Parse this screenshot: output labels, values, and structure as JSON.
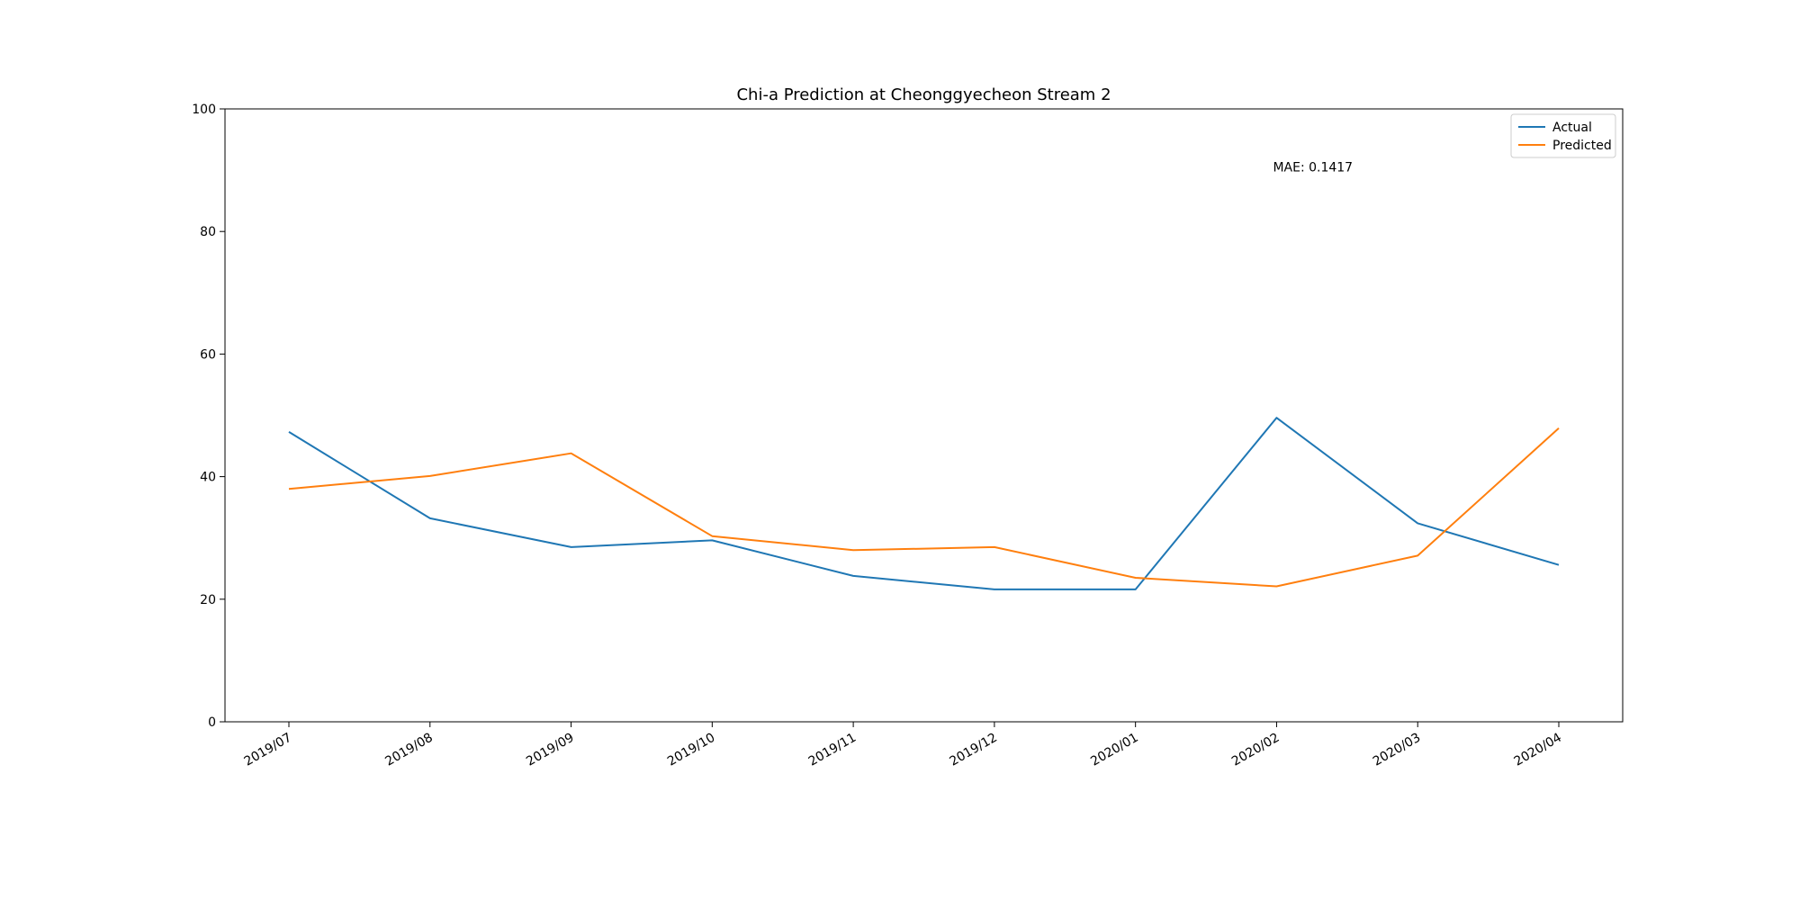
{
  "chart_data": {
    "type": "line",
    "title": "Chi-a Prediction at Cheonggyecheon Stream 2",
    "xlabel": "",
    "ylabel": "",
    "categories": [
      "2019/07",
      "2019/08",
      "2019/09",
      "2019/10",
      "2019/11",
      "2019/12",
      "2020/01",
      "2020/02",
      "2020/03",
      "2020/04"
    ],
    "ylim": [
      0,
      100
    ],
    "yticks": [
      0,
      20,
      40,
      60,
      80,
      100
    ],
    "grid": false,
    "legend_position": "top-right",
    "series": [
      {
        "name": "Actual",
        "color": "#1f77b4",
        "values": [
          47.3,
          33.2,
          28.5,
          29.6,
          23.8,
          21.6,
          21.6,
          49.6,
          32.4,
          25.6
        ]
      },
      {
        "name": "Predicted",
        "color": "#ff7f0e",
        "values": [
          38.0,
          40.1,
          43.8,
          30.3,
          28.0,
          28.5,
          23.5,
          22.1,
          27.1,
          47.9
        ]
      }
    ],
    "annotation": "MAE: 0.1417"
  }
}
